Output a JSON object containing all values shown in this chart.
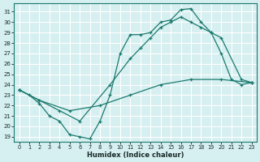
{
  "xlabel": "Humidex (Indice chaleur)",
  "bg_color": "#d6eff0",
  "grid_color": "#ffffff",
  "line_color": "#1a7a6e",
  "xlim": [
    -0.5,
    23.5
  ],
  "ylim": [
    18.5,
    31.8
  ],
  "yticks": [
    19,
    20,
    21,
    22,
    23,
    24,
    25,
    26,
    27,
    28,
    29,
    30,
    31
  ],
  "xticks": [
    0,
    1,
    2,
    3,
    4,
    5,
    6,
    7,
    8,
    9,
    10,
    11,
    12,
    13,
    14,
    15,
    16,
    17,
    18,
    19,
    20,
    21,
    22,
    23
  ],
  "line1_x": [
    0,
    1,
    2,
    3,
    4,
    5,
    6,
    7,
    8,
    9,
    10,
    11,
    12,
    13,
    14,
    15,
    16,
    17,
    18,
    19,
    20,
    21,
    22,
    23
  ],
  "line1_y": [
    23.5,
    23.0,
    22.2,
    21.0,
    20.5,
    19.2,
    19.0,
    18.8,
    20.5,
    23.0,
    27.0,
    28.8,
    28.8,
    29.0,
    30.0,
    30.2,
    31.2,
    31.3,
    30.0,
    29.0,
    27.0,
    24.5,
    24.0,
    24.2
  ],
  "line2_x": [
    0,
    2,
    4,
    6,
    9,
    11,
    12,
    13,
    14,
    15,
    16,
    17,
    18,
    19,
    20,
    22,
    23
  ],
  "line2_y": [
    23.5,
    22.5,
    21.5,
    20.5,
    24.0,
    26.5,
    27.5,
    28.5,
    29.5,
    30.0,
    30.5,
    30.0,
    29.5,
    29.0,
    28.5,
    24.5,
    24.2
  ],
  "line3_x": [
    0,
    2,
    5,
    8,
    11,
    14,
    17,
    20,
    23
  ],
  "line3_y": [
    23.5,
    22.5,
    21.5,
    22.0,
    23.0,
    24.0,
    24.5,
    24.5,
    24.2
  ]
}
